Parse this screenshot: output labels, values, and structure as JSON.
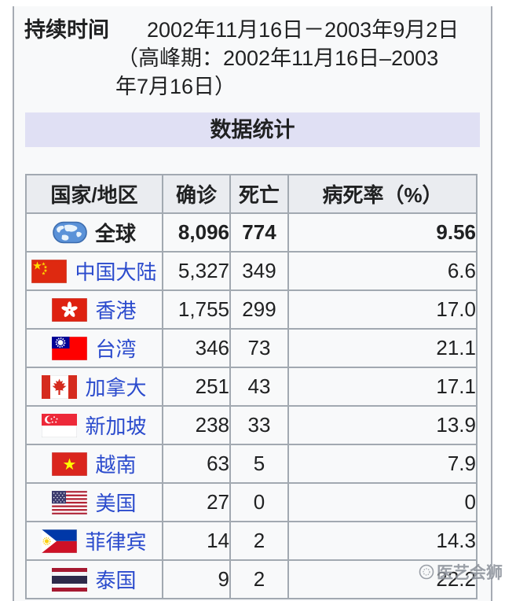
{
  "infobox": {
    "duration_label": "持续时间",
    "duration_lines": [
      "2002年11月16日－2003年9月2日",
      "（高峰期：2002年11月16日–2003",
      "年7月16日）"
    ],
    "stats_header": "数据统计"
  },
  "table": {
    "headers": [
      "国家/地区",
      "确诊",
      "死亡",
      "病死率（%）"
    ],
    "rows": [
      {
        "flag": "globe",
        "name": "全球",
        "confirmed": "8,096",
        "deaths": "774",
        "rate": "9.56",
        "bold": true,
        "link": false
      },
      {
        "flag": "china",
        "name": "中国大陆",
        "confirmed": "5,327",
        "deaths": "349",
        "rate": "6.6",
        "bold": false,
        "link": true
      },
      {
        "flag": "hong-kong",
        "name": "香港",
        "confirmed": "1,755",
        "deaths": "299",
        "rate": "17.0",
        "bold": false,
        "link": true
      },
      {
        "flag": "taiwan",
        "name": "台湾",
        "confirmed": "346",
        "deaths": "73",
        "rate": "21.1",
        "bold": false,
        "link": true
      },
      {
        "flag": "canada",
        "name": "加拿大",
        "confirmed": "251",
        "deaths": "43",
        "rate": "17.1",
        "bold": false,
        "link": true
      },
      {
        "flag": "singapore",
        "name": "新加坡",
        "confirmed": "238",
        "deaths": "33",
        "rate": "13.9",
        "bold": false,
        "link": true
      },
      {
        "flag": "vietnam",
        "name": "越南",
        "confirmed": "63",
        "deaths": "5",
        "rate": "7.9",
        "bold": false,
        "link": true
      },
      {
        "flag": "usa",
        "name": "美国",
        "confirmed": "27",
        "deaths": "0",
        "rate": "0",
        "bold": false,
        "link": true
      },
      {
        "flag": "philippines",
        "name": "菲律宾",
        "confirmed": "14",
        "deaths": "2",
        "rate": "14.3",
        "bold": false,
        "link": true
      },
      {
        "flag": "thailand",
        "name": "泰国",
        "confirmed": "9",
        "deaths": "2",
        "rate": "22.2",
        "bold": false,
        "link": true
      }
    ]
  },
  "watermark": {
    "text": "医艺会狮",
    "icon": "lion-logo"
  },
  "colors": {
    "content_bg": "#f8f9fa",
    "page_border": "#a6abb3",
    "header_bar_bg": "#e0e0f4",
    "table_header_bg": "#eaecf0",
    "table_border": "#a2a9b1",
    "link_blue": "#2b4bcd"
  }
}
